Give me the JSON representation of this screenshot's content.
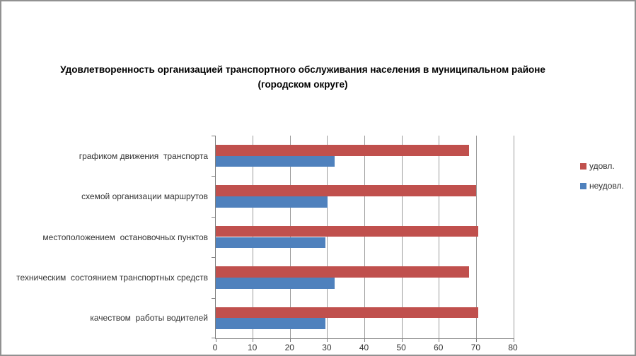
{
  "chart": {
    "title": {
      "line1": "Удовлетворенность организацией транспортного обслуживания населения в муниципальном районе",
      "line2": "(городском округе)"
    }
  },
  "chart_data": {
    "type": "bar",
    "orientation": "horizontal",
    "title": "Удовлетворенность организацией транспортного обслуживания населения в муниципальном районе (городском округе)",
    "categories": [
      "графиком движения  транспорта",
      "схемой организации маршрутов",
      "местоположением  остановочных пунктов",
      "техническим  состоянием транспортных средств",
      "качеством  работы водителей"
    ],
    "series": [
      {
        "name": "удовл.",
        "color": "#C0504D",
        "values": [
          68,
          70,
          70.5,
          68,
          70.5
        ]
      },
      {
        "name": "неудовл.",
        "color": "#4F81BD",
        "values": [
          32,
          30,
          29.5,
          32,
          29.5
        ]
      }
    ],
    "xlabel": "",
    "ylabel": "",
    "xlim": [
      0,
      80
    ],
    "xticks": [
      0,
      10,
      20,
      30,
      40,
      50,
      60,
      70,
      80
    ],
    "grid": true,
    "legend_position": "right"
  },
  "colors": {
    "udovl": "#C0504D",
    "neudovl": "#4F81BD",
    "gridline": "#9B9B9B",
    "axis": "#808080",
    "frame_border": "#919191",
    "background": "#FFFFFF",
    "text": "#333333"
  }
}
